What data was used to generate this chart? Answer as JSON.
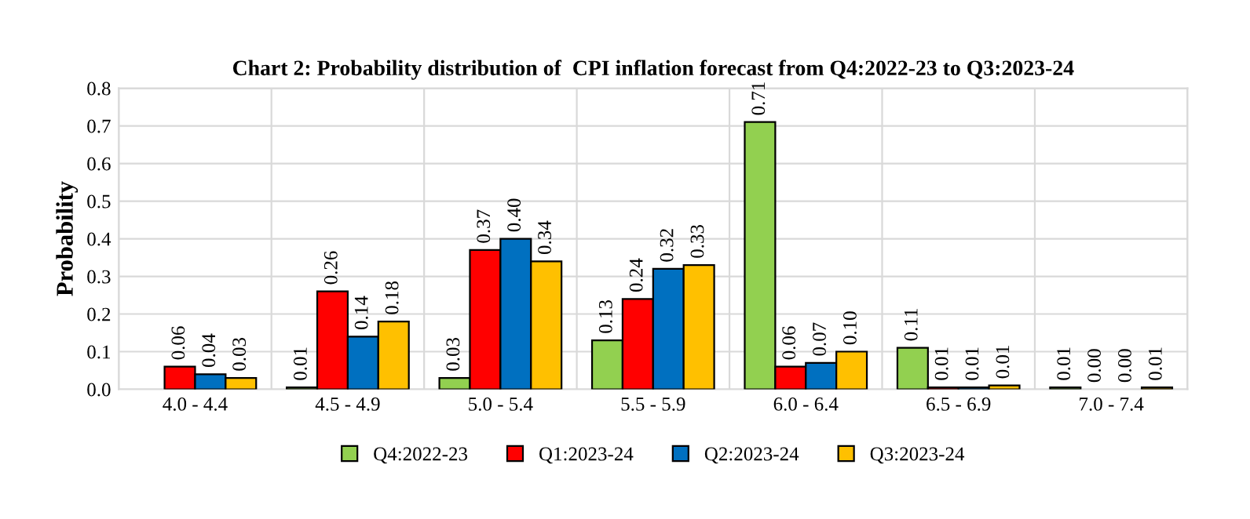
{
  "chart_data": {
    "type": "bar",
    "title": "Chart 2: Probability distribution of  CPI inflation forecast from Q4:2022-23 to Q3:2023-24",
    "ylabel": "Probability",
    "categories": [
      "4.0 - 4.4",
      "4.5 - 4.9",
      "5.0 - 5.4",
      "5.5 - 5.9",
      "6.0 - 6.4",
      "6.5 - 6.9",
      "7.0 - 7.4"
    ],
    "series": [
      {
        "name": "Q4:2022-23",
        "color": "#92d050",
        "values": [
          null,
          0.005,
          0.03,
          0.13,
          0.71,
          0.11,
          0.005
        ],
        "value_labels": [
          null,
          "0.01",
          "0.03",
          "0.13",
          "0.71",
          "0.11",
          "0.01"
        ]
      },
      {
        "name": "Q1:2023-24",
        "color": "#ff0000",
        "values": [
          0.06,
          0.26,
          0.37,
          0.24,
          0.06,
          0.005,
          0.0
        ],
        "value_labels": [
          "0.06",
          "0.26",
          "0.37",
          "0.24",
          "0.06",
          "0.01",
          "0.00"
        ]
      },
      {
        "name": "Q2:2023-24",
        "color": "#0070c0",
        "values": [
          0.04,
          0.14,
          0.4,
          0.32,
          0.07,
          0.005,
          0.0
        ],
        "value_labels": [
          "0.04",
          "0.14",
          "0.40",
          "0.32",
          "0.07",
          "0.01",
          "0.00"
        ]
      },
      {
        "name": "Q3:2023-24",
        "color": "#ffc000",
        "values": [
          0.03,
          0.18,
          0.34,
          0.33,
          0.1,
          0.01,
          0.005
        ],
        "value_labels": [
          "0.03",
          "0.18",
          "0.34",
          "0.33",
          "0.10",
          "0.01",
          "0.01"
        ]
      }
    ],
    "ylim": [
      0,
      0.8
    ],
    "yticks": [
      {
        "value": 0,
        "label": "0.0"
      },
      {
        "value": 0.1,
        "label": "0.1"
      },
      {
        "value": 0.2,
        "label": "0.2"
      },
      {
        "value": 0.3,
        "label": "0.3"
      },
      {
        "value": 0.4,
        "label": "0.4"
      },
      {
        "value": 0.5,
        "label": "0.5"
      },
      {
        "value": 0.6,
        "label": "0.6"
      },
      {
        "value": 0.7,
        "label": "0.7"
      },
      {
        "value": 0.8,
        "label": "0.8"
      }
    ],
    "grid": true,
    "legend": "bottom"
  }
}
